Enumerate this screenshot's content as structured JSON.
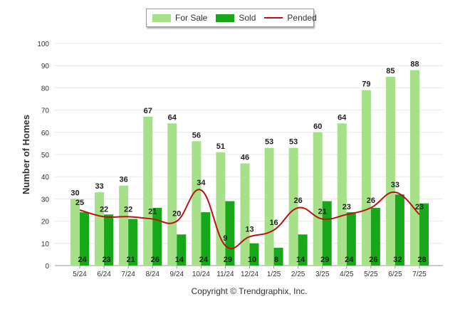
{
  "legend": {
    "for_sale": "For Sale",
    "sold": "Sold",
    "pended": "Pended"
  },
  "copyright": "Copyright © Trendgraphix, Inc.",
  "colors": {
    "for_sale": "#a6e089",
    "sold": "#17a81a",
    "pended": "#b81414",
    "grid": "#e8e8e8",
    "axis_text": "#333333"
  },
  "chart_data": {
    "type": "bar",
    "title": "",
    "xlabel": "",
    "ylabel": "Number of Homes",
    "ylim": [
      0,
      100
    ],
    "yticks": [
      0,
      10,
      20,
      30,
      40,
      50,
      60,
      70,
      80,
      90,
      100
    ],
    "grid": true,
    "legend_position": "top-center",
    "categories": [
      "5/24",
      "6/24",
      "7/24",
      "8/24",
      "9/24",
      "10/24",
      "11/24",
      "12/24",
      "1/25",
      "2/25",
      "3/25",
      "4/25",
      "5/25",
      "6/25",
      "7/25"
    ],
    "series": [
      {
        "name": "For Sale",
        "type": "bar",
        "values": [
          30,
          33,
          36,
          67,
          64,
          56,
          51,
          46,
          53,
          53,
          60,
          64,
          79,
          85,
          88
        ]
      },
      {
        "name": "Sold",
        "type": "bar",
        "values": [
          24,
          23,
          21,
          26,
          14,
          24,
          29,
          10,
          8,
          14,
          29,
          24,
          26,
          32,
          28
        ]
      },
      {
        "name": "Pended",
        "type": "line",
        "values": [
          25,
          22,
          22,
          21,
          20,
          34,
          9,
          13,
          16,
          26,
          21,
          23,
          26,
          33,
          23
        ]
      }
    ]
  }
}
